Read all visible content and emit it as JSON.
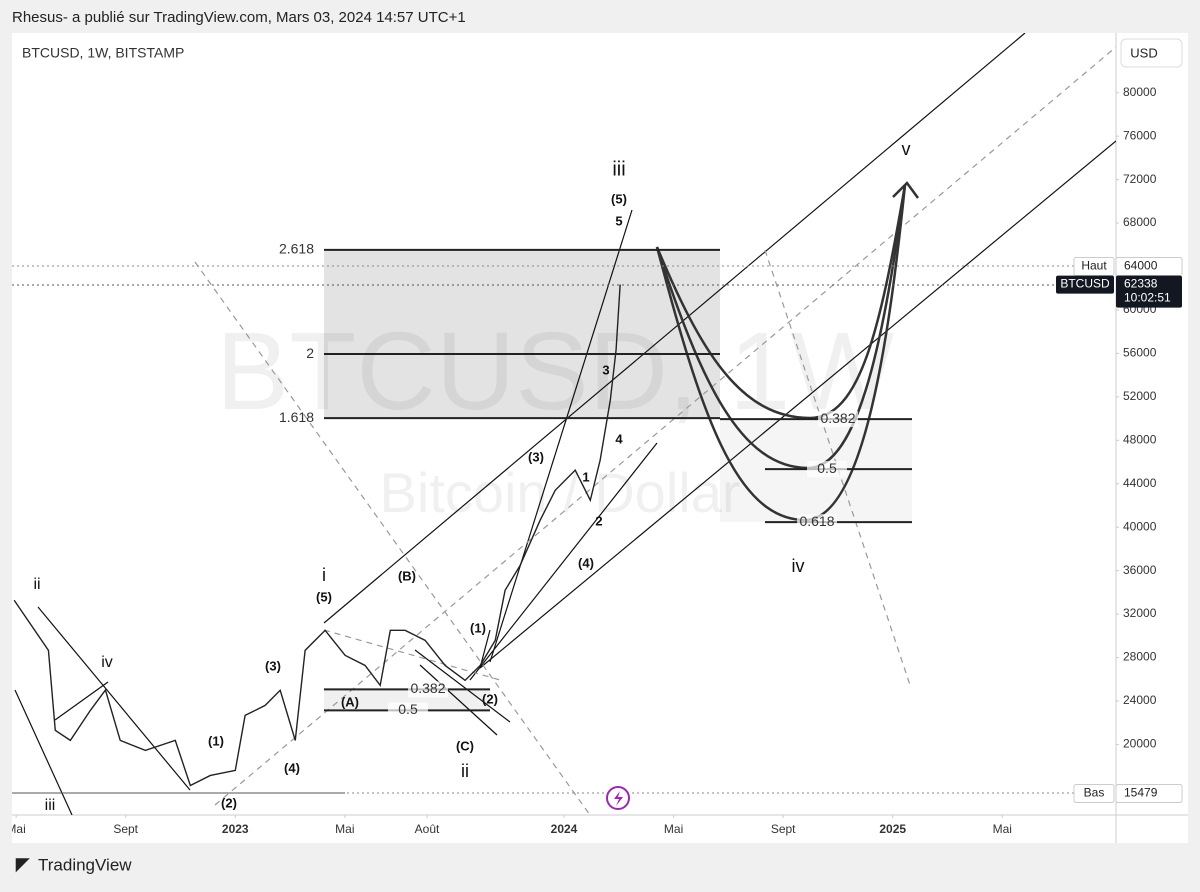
{
  "header": "Rhesus- a publié sur TradingView.com, Mars 03, 2024 14:57 UTC+1",
  "footer": "TradingView",
  "chart_data": {
    "type": "line",
    "title": "BTCUSD, 1W, BITSTAMP",
    "watermark": "BTCUSD, 1W",
    "watermark_subtitle": "Bitcoin / Dollar",
    "currency": "USD",
    "color": "#222222",
    "x": [
      3.93,
      5.18,
      5.43,
      5.98,
      6.71,
      7.26,
      7.8,
      8.72,
      9.81,
      10.36,
      11.09,
      12,
      12.36,
      13.09,
      13.64,
      14.19,
      14.55,
      15.28,
      16.01,
      16.74,
      17.29,
      17.66,
      18.2,
      18.93,
      19.66,
      20.39,
      20.94,
      21.49,
      21.85,
      22.4,
      23.13,
      23.68,
      24.41,
      24.96,
      25.32,
      25.69,
      25.9,
      26.05
    ],
    "values": [
      33270,
      28660,
      21290,
      20370,
      23130,
      25000,
      20370,
      19450,
      20370,
      16220,
      17140,
      17600,
      22670,
      23590,
      24980,
      20370,
      28660,
      30500,
      28200,
      27270,
      25440,
      30500,
      30500,
      29580,
      27270,
      25900,
      27270,
      29580,
      34190,
      36490,
      40640,
      43400,
      45250,
      42480,
      46170,
      51700,
      56300,
      62338
    ],
    "xlim": [
      3.85,
      44.15
    ],
    "xticks": [
      {
        "value": 4,
        "label": "Mai"
      },
      {
        "value": 8,
        "label": "Sept"
      },
      {
        "value": 12,
        "label": "2023"
      },
      {
        "value": 16,
        "label": "Mai"
      },
      {
        "value": 19,
        "label": "Août"
      },
      {
        "value": 24,
        "label": "2024"
      },
      {
        "value": 28,
        "label": "Mai"
      },
      {
        "value": 32,
        "label": "Sept"
      },
      {
        "value": 36,
        "label": "2025"
      },
      {
        "value": 40,
        "label": "Mai"
      }
    ],
    "ylim": [
      13500,
      85500
    ],
    "yticks": [
      20000,
      24000,
      28000,
      32000,
      36000,
      40000,
      44000,
      48000,
      52000,
      56000,
      60000,
      64000,
      68000,
      72000,
      76000,
      80000
    ],
    "levels": [
      {
        "label": "2.618",
        "value": 65530
      },
      {
        "label": "2",
        "value": 55940
      },
      {
        "label": "1.618",
        "value": 50040
      },
      {
        "label": "0.382",
        "value": 49950
      },
      {
        "label": "0.5",
        "value": 45350
      },
      {
        "label": "0.618",
        "value": 40460
      },
      {
        "label": "0.382",
        "value": 25070
      },
      {
        "label": "0.5",
        "value": 23130
      }
    ],
    "price_tags": [
      {
        "label": "Haut",
        "value": 64000
      },
      {
        "label": "BTCUSD",
        "value": 62338,
        "timer": "10:02:51"
      },
      {
        "label": "Bas",
        "value": 15479
      }
    ],
    "annotations": [
      "ii",
      "iv",
      "iii",
      "(1)",
      "(2)",
      "(3)",
      "(4)",
      "(5)",
      "i",
      "(A)",
      "(B)",
      "(C)",
      "ii",
      "(1)",
      "(2)",
      "(3)",
      "(4)",
      "1",
      "2",
      "3",
      "4",
      "5",
      "(5)",
      "iii",
      "iv",
      "v"
    ]
  }
}
